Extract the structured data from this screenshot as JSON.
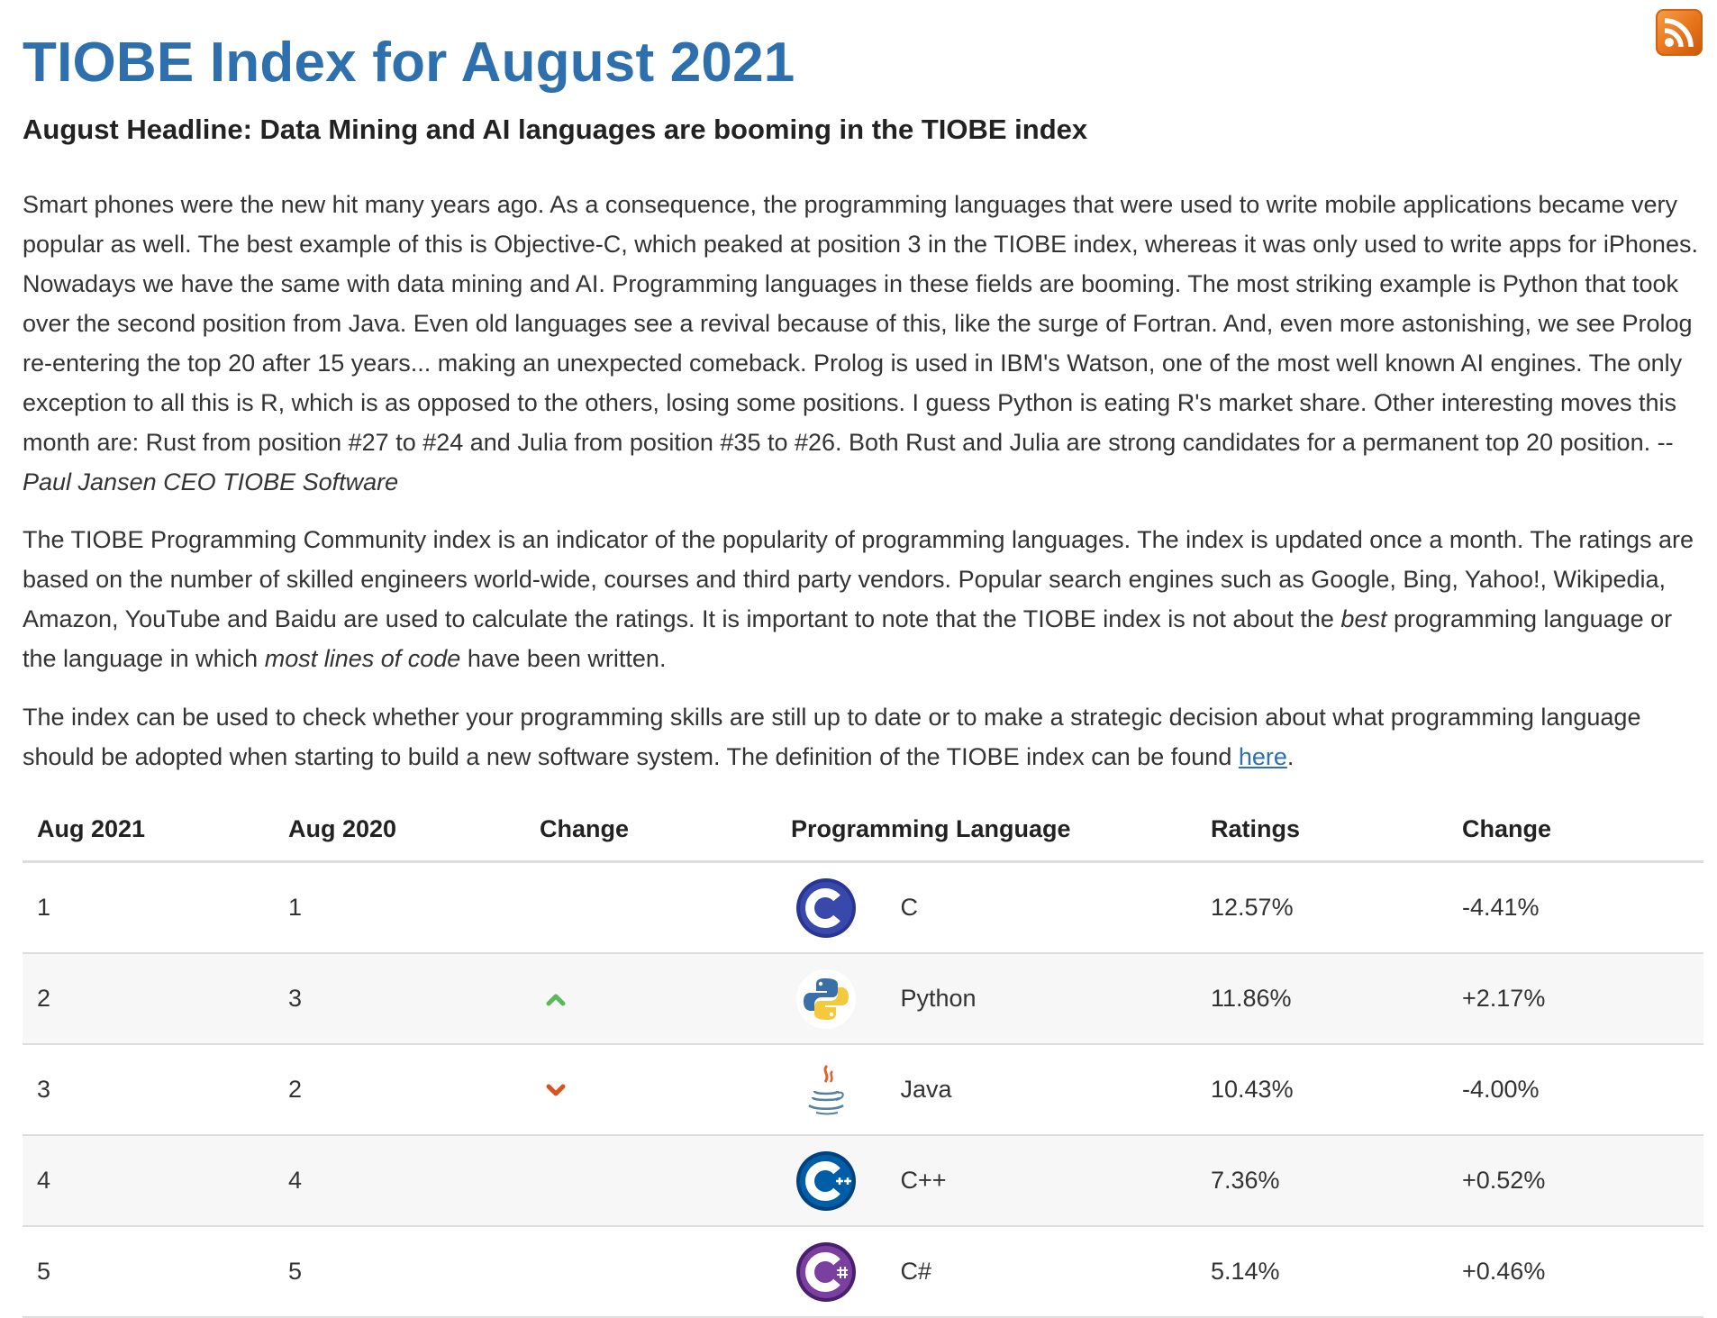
{
  "page": {
    "title": "TIOBE Index for August 2021",
    "headline": "August Headline: Data Mining and AI languages are booming in the TIOBE index",
    "rss_icon": "rss-feed-icon"
  },
  "paragraphs": {
    "p1_text": "Smart phones were the new hit many years ago. As a consequence, the programming languages that were used to write mobile applications became very popular as well. The best example of this is Objective-C, which peaked at position 3 in the TIOBE index, whereas it was only used to write apps for iPhones. Nowadays we have the same with data mining and AI. Programming languages in these fields are booming. The most striking example is Python that took over the second position from Java. Even old languages see a revival because of this, like the surge of Fortran. And, even more astonishing, we see Prolog re-entering the top 20 after 15 years... making an unexpected comeback. Prolog is used in IBM's Watson, one of the most well known AI engines. The only exception to all this is R, which is as opposed to the others, losing some positions. I guess Python is eating R's market share. Other interesting moves this month are: Rust from position #27 to #24 and Julia from position #35 to #26. Both Rust and Julia are strong candidates for a permanent top 20 position. -- ",
    "p1_author": "Paul Jansen CEO TIOBE Software",
    "p2_a": "The TIOBE Programming Community index is an indicator of the popularity of programming languages. The index is updated once a month. The ratings are based on the number of skilled engineers world-wide, courses and third party vendors. Popular search engines such as Google, Bing, Yahoo!, Wikipedia, Amazon, YouTube and Baidu are used to calculate the ratings. It is important to note that the TIOBE index is not about the ",
    "p2_em1": "best",
    "p2_b": " programming language or the language in which ",
    "p2_em2": "most lines of code",
    "p2_c": " have been written.",
    "p3_a": "The index can be used to check whether your programming skills are still up to date or to make a strategic decision about what programming language should be adopted when starting to build a new software system. The definition of the TIOBE index can be found ",
    "p3_link": "here",
    "p3_b": "."
  },
  "table": {
    "headers": [
      "Aug 2021",
      "Aug 2020",
      "Change",
      "Programming Language",
      "Ratings",
      "Change"
    ],
    "rows": [
      {
        "aug2021": "1",
        "aug2020": "1",
        "trend": "none",
        "language": "C",
        "logo": "c-logo-icon",
        "rating": "12.57%",
        "change": "-4.41%"
      },
      {
        "aug2021": "2",
        "aug2020": "3",
        "trend": "up",
        "language": "Python",
        "logo": "python-logo-icon",
        "rating": "11.86%",
        "change": "+2.17%"
      },
      {
        "aug2021": "3",
        "aug2020": "2",
        "trend": "down",
        "language": "Java",
        "logo": "java-logo-icon",
        "rating": "10.43%",
        "change": "-4.00%"
      },
      {
        "aug2021": "4",
        "aug2020": "4",
        "trend": "none",
        "language": "C++",
        "logo": "cpp-logo-icon",
        "rating": "7.36%",
        "change": "+0.52%"
      },
      {
        "aug2021": "5",
        "aug2020": "5",
        "trend": "none",
        "language": "C#",
        "logo": "csharp-logo-icon",
        "rating": "5.14%",
        "change": "+0.46%"
      }
    ]
  },
  "colors": {
    "title": "#2e6fad",
    "link": "#2e6fad",
    "trend_up": "#5cb85c",
    "trend_down": "#d9531e",
    "rss": "#e8731a"
  }
}
